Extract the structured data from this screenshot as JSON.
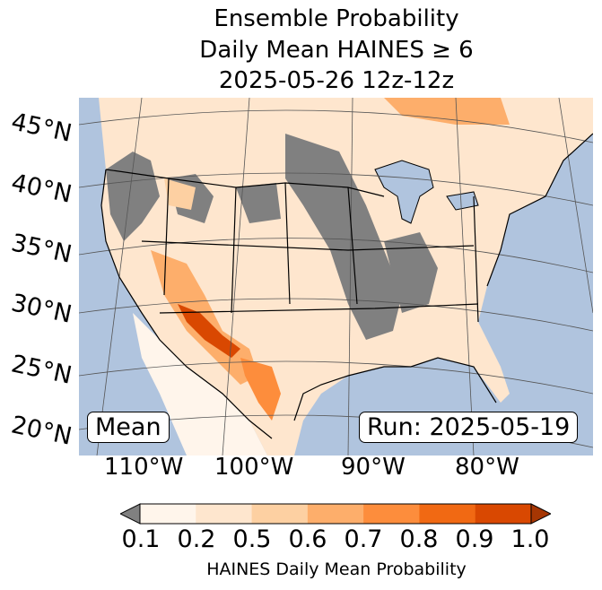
{
  "title": {
    "line1": "Ensemble Probability",
    "line2": "Daily Mean HAINES ≥ 6",
    "line3": "2025-05-26 12z-12z"
  },
  "map": {
    "lat_labels": [
      "45°N",
      "40°N",
      "35°N",
      "30°N",
      "25°N",
      "20°N"
    ],
    "lon_labels": [
      "110°W",
      "100°W",
      "90°W",
      "80°W"
    ],
    "stat_label": "Mean",
    "run_label": "Run: 2025-05-19",
    "colors": {
      "ocean": "#b0c4de",
      "below": "#808080",
      "bins": [
        "#fff5eb",
        "#fee6ce",
        "#fdd0a2",
        "#fdae6b",
        "#fd8d3c",
        "#f16913",
        "#d94801",
        "#a63603"
      ]
    }
  },
  "colorbar": {
    "ticks": [
      "0.1",
      "0.2",
      "0.5",
      "0.6",
      "0.7",
      "0.8",
      "0.9",
      "1.0"
    ],
    "label": "HAINES Daily Mean Probability"
  }
}
